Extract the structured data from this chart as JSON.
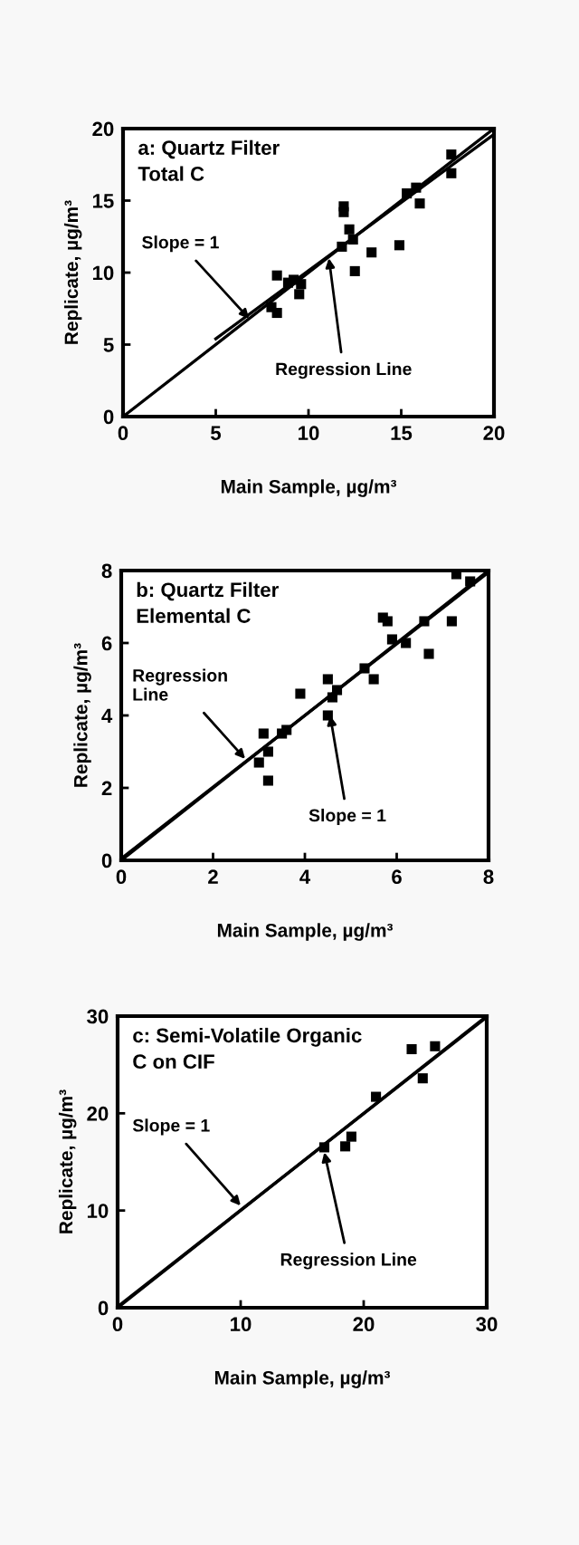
{
  "chart_data": [
    {
      "type": "scatter",
      "title": "a: Quartz Filter\nTotal C",
      "xlabel": "Main Sample, µg/m³",
      "ylabel": "Replicate, µg/m³",
      "xlim": [
        0,
        20
      ],
      "ylim": [
        0,
        20
      ],
      "xticks": [
        0,
        5,
        10,
        15,
        20
      ],
      "yticks": [
        0,
        5,
        10,
        15,
        20
      ],
      "grid": false,
      "legend": false,
      "series": [
        {
          "marker": "square",
          "color": "#000000",
          "x": [
            8.0,
            8.3,
            8.3,
            8.9,
            9.2,
            9.6,
            9.5,
            11.8,
            11.9,
            11.9,
            12.2,
            12.4,
            12.5,
            13.4,
            14.9,
            15.3,
            15.8,
            16.0,
            17.7,
            17.7
          ],
          "values": [
            7.6,
            7.2,
            9.8,
            9.3,
            9.5,
            9.2,
            8.5,
            11.8,
            14.2,
            14.6,
            13.0,
            12.3,
            10.1,
            11.4,
            11.9,
            15.5,
            15.9,
            14.8,
            18.2,
            16.9
          ]
        },
        {
          "type": "line",
          "color": "#000000",
          "x": [
            0,
            20
          ],
          "values": [
            0,
            20
          ]
        },
        {
          "type": "line",
          "color": "#000000",
          "x": [
            5,
            20
          ],
          "values": [
            5.4,
            19.6
          ]
        }
      ],
      "annotations": [
        {
          "text": "Slope = 1",
          "x": 6.8,
          "y": 6.8
        },
        {
          "text": "Regression Line",
          "x": 11.1,
          "y": 11.0
        }
      ]
    },
    {
      "type": "scatter",
      "title": "b: Quartz Filter\nElemental C",
      "xlabel": "Main Sample, µg/m³",
      "ylabel": "Replicate, µg/m³",
      "xlim": [
        0,
        8
      ],
      "ylim": [
        0,
        8
      ],
      "xticks": [
        0,
        2,
        4,
        6,
        8
      ],
      "yticks": [
        0,
        2,
        4,
        6,
        8
      ],
      "grid": false,
      "legend": false,
      "series": [
        {
          "marker": "square",
          "color": "#000000",
          "x": [
            3.0,
            3.1,
            3.2,
            3.2,
            3.5,
            3.6,
            3.9,
            4.5,
            4.5,
            4.6,
            4.7,
            5.3,
            5.5,
            5.7,
            5.8,
            5.9,
            6.2,
            6.6,
            6.7,
            7.2,
            7.3,
            7.6
          ],
          "values": [
            2.7,
            3.5,
            3.0,
            2.2,
            3.5,
            3.6,
            4.6,
            5.0,
            4.0,
            4.5,
            4.7,
            5.3,
            5.0,
            6.7,
            6.6,
            6.1,
            6.0,
            6.6,
            5.7,
            6.6,
            7.9,
            7.7
          ]
        },
        {
          "type": "line",
          "color": "#000000",
          "x": [
            0,
            8
          ],
          "values": [
            0,
            8
          ]
        },
        {
          "type": "line",
          "color": "#000000",
          "x": [
            0,
            8
          ],
          "values": [
            0.05,
            7.95
          ]
        }
      ],
      "annotations": [
        {
          "text": "Regression\nLine",
          "x": 2.7,
          "y": 2.8
        },
        {
          "text": "Slope = 1",
          "x": 4.55,
          "y": 4.0
        }
      ]
    },
    {
      "type": "scatter",
      "title": "c: Semi-Volatile Organic\nC on CIF",
      "xlabel": "Main Sample, µg/m³",
      "ylabel": "Replicate, µg/m³",
      "xlim": [
        0,
        30
      ],
      "ylim": [
        0,
        30
      ],
      "xticks": [
        0,
        10,
        20,
        30
      ],
      "yticks": [
        0,
        10,
        20,
        30
      ],
      "grid": false,
      "legend": false,
      "series": [
        {
          "marker": "square",
          "color": "#000000",
          "x": [
            16.8,
            18.5,
            19.0,
            21.0,
            23.9,
            24.8,
            25.8
          ],
          "values": [
            16.5,
            16.6,
            17.6,
            21.7,
            26.6,
            23.6,
            26.9
          ]
        },
        {
          "type": "line",
          "color": "#000000",
          "x": [
            0,
            30
          ],
          "values": [
            0,
            30
          ]
        },
        {
          "type": "line",
          "color": "#000000",
          "x": [
            0,
            30
          ],
          "values": [
            0.1,
            29.9
          ]
        }
      ],
      "annotations": [
        {
          "text": "Slope = 1",
          "x": 10,
          "y": 10.5
        },
        {
          "text": "Regression Line",
          "x": 16.8,
          "y": 16.0
        }
      ]
    }
  ]
}
